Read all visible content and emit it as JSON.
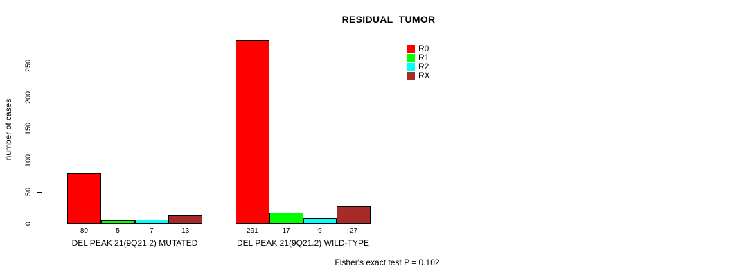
{
  "title": "RESIDUAL_TUMOR",
  "ylabel": "number of cases",
  "footer": "Fisher's exact test P = 0.102",
  "legend": [
    {
      "label": "R0",
      "color": "#FF0000"
    },
    {
      "label": "R1",
      "color": "#00FF00"
    },
    {
      "label": "R2",
      "color": "#00FFFF"
    },
    {
      "label": "RX",
      "color": "#A52A2A"
    }
  ],
  "chart_data": {
    "type": "bar",
    "title": "RESIDUAL_TUMOR",
    "xlabel": "",
    "ylabel": "number of cases",
    "categories": [
      "DEL PEAK 21(9Q21.2) MUTATED",
      "DEL PEAK 21(9Q21.2) WILD-TYPE"
    ],
    "series": [
      {
        "name": "R0",
        "color": "#FF0000",
        "values": [
          80,
          291
        ]
      },
      {
        "name": "R1",
        "color": "#00FF00",
        "values": [
          5,
          17
        ]
      },
      {
        "name": "R2",
        "color": "#00FFFF",
        "values": [
          7,
          9
        ]
      },
      {
        "name": "RX",
        "color": "#A52A2A",
        "values": [
          13,
          27
        ]
      }
    ],
    "bar_value_labels": [
      [
        80,
        5,
        7,
        13
      ],
      [
        291,
        17,
        9,
        27
      ]
    ],
    "yticks": [
      0,
      50,
      100,
      150,
      200,
      250
    ],
    "ylim": [
      0,
      291
    ],
    "grid": false,
    "legend_position": "top-right",
    "annotation": "Fisher's exact test P = 0.102"
  }
}
